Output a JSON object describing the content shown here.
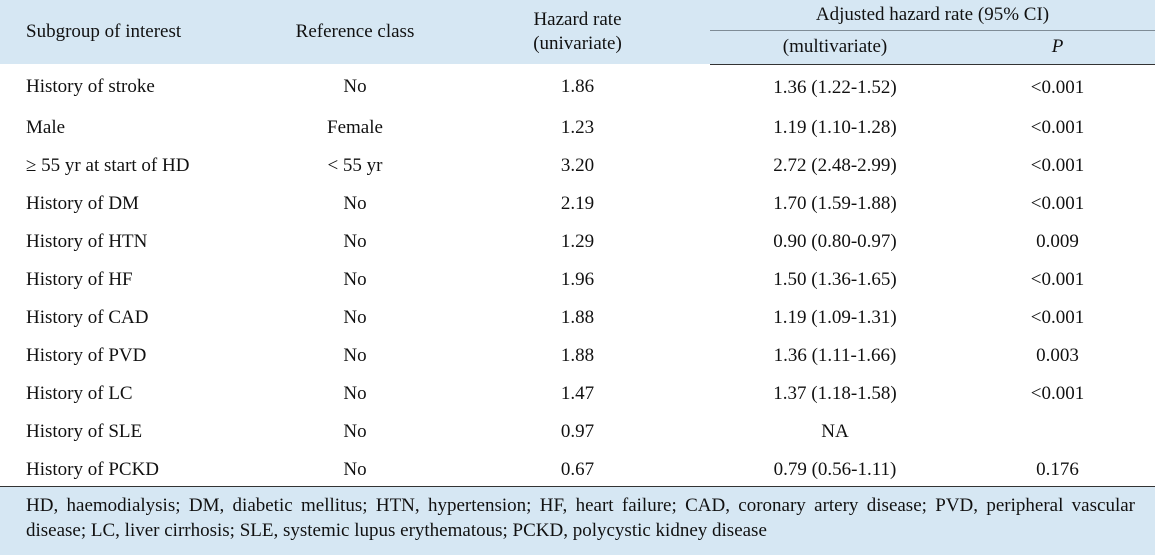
{
  "table": {
    "headers": {
      "subgroup": "Subgroup of interest",
      "reference": "Reference class",
      "hazard_line1": "Hazard rate",
      "hazard_line2": "(univariate)",
      "adjusted": "Adjusted hazard rate (95% CI)",
      "multivariate": "(multivariate)",
      "p": "P"
    },
    "rows": [
      {
        "subgroup": "History of stroke",
        "reference": "No",
        "hazard": "1.86",
        "adjusted": "1.36 (1.22-1.52)",
        "p": "<0.001"
      },
      {
        "subgroup": "Male",
        "reference": "Female",
        "hazard": "1.23",
        "adjusted": "1.19 (1.10-1.28)",
        "p": "<0.001"
      },
      {
        "subgroup": "≥ 55 yr at start of HD",
        "reference": "< 55 yr",
        "hazard": "3.20",
        "adjusted": "2.72 (2.48-2.99)",
        "p": "<0.001"
      },
      {
        "subgroup": "History of DM",
        "reference": "No",
        "hazard": "2.19",
        "adjusted": "1.70 (1.59-1.88)",
        "p": "<0.001"
      },
      {
        "subgroup": "History of HTN",
        "reference": "No",
        "hazard": "1.29",
        "adjusted": "0.90 (0.80-0.97)",
        "p": "0.009"
      },
      {
        "subgroup": "History of HF",
        "reference": "No",
        "hazard": "1.96",
        "adjusted": "1.50 (1.36-1.65)",
        "p": "<0.001"
      },
      {
        "subgroup": "History of CAD",
        "reference": "No",
        "hazard": "1.88",
        "adjusted": "1.19 (1.09-1.31)",
        "p": "<0.001"
      },
      {
        "subgroup": "History of PVD",
        "reference": "No",
        "hazard": "1.88",
        "adjusted": "1.36 (1.11-1.66)",
        "p": "0.003"
      },
      {
        "subgroup": "History of LC",
        "reference": "No",
        "hazard": "1.47",
        "adjusted": "1.37 (1.18-1.58)",
        "p": "<0.001"
      },
      {
        "subgroup": "History of SLE",
        "reference": "No",
        "hazard": "0.97",
        "adjusted": "NA",
        "p": ""
      },
      {
        "subgroup": "History of PCKD",
        "reference": "No",
        "hazard": "0.67",
        "adjusted": "0.79 (0.56-1.11)",
        "p": "0.176"
      }
    ],
    "footnote": "HD, haemodialysis; DM, diabetic mellitus; HTN, hypertension; HF, heart failure; CAD, coronary artery disease; PVD, peripheral vascular disease; LC, liver cirrhosis; SLE, systemic lupus erythematous; PCKD, polycystic kidney disease"
  },
  "colors": {
    "header_bg": "#d6e7f3",
    "text": "#111111"
  }
}
